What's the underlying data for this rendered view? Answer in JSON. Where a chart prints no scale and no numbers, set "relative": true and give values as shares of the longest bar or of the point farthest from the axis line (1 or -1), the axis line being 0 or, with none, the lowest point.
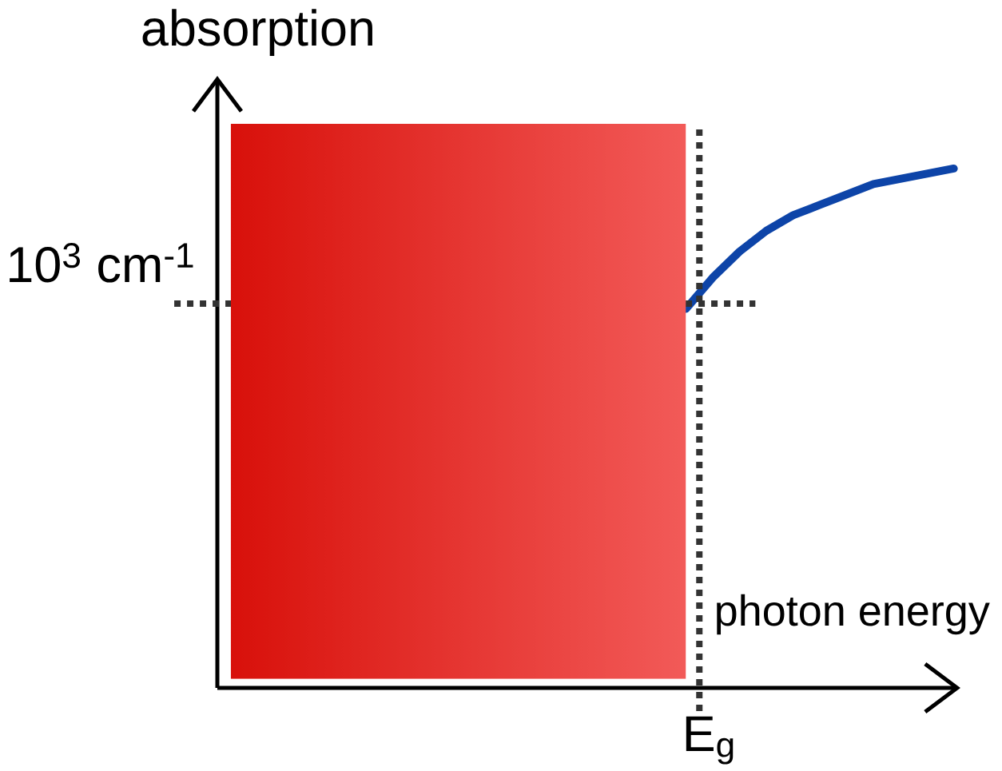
{
  "chart_data": {
    "type": "line",
    "ylabel": "absorption",
    "xlabel": "photon energy",
    "categories": [
      null,
      null,
      null,
      null,
      null,
      null,
      null,
      null,
      null,
      null,
      null,
      null,
      null,
      null,
      null,
      null,
      null,
      null,
      null,
      null,
      null,
      null,
      null,
      null,
      null,
      null,
      null,
      null
    ],
    "series": [
      {
        "color": "#0d44a8",
        "values": [
          null,
          null,
          null,
          null,
          null,
          null,
          null,
          null,
          null,
          null,
          null,
          null,
          null,
          null,
          null,
          null,
          null,
          0.73,
          0.79,
          0.84,
          0.88,
          0.91,
          0.93,
          0.95,
          0.97,
          0.98,
          0.99,
          1.0
        ]
      }
    ],
    "relative": true,
    "ref_lines": [
      {
        "axis": "y",
        "value": 0.74,
        "label": "10$^{3}$ cm$^{-1}$",
        "color": "#333333",
        "line_style": "dotted"
      }
    ],
    "annotations": [
      "E$_{g}$"
    ],
    "marker": "none",
    "line_style": "solid"
  }
}
